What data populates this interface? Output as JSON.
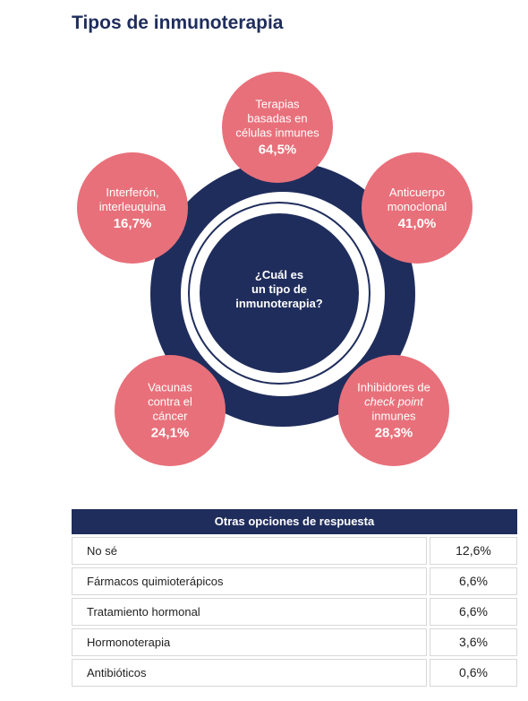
{
  "header": {
    "title": "Tipos de inmunoterapia"
  },
  "center": {
    "lines": [
      "¿Cuál es",
      "un tipo de",
      "inmunoterapia?"
    ]
  },
  "nodes": [
    {
      "lines": [
        "Terapias",
        "basadas en",
        "células inmunes"
      ],
      "value": "64,5%"
    },
    {
      "lines": [
        "Anticuerpo",
        "monoclonal"
      ],
      "value": "41,0%"
    },
    {
      "lines": [
        "Inhibidores de",
        "check point",
        "inmunes"
      ],
      "value": "28,3%"
    },
    {
      "lines": [
        "Vacunas",
        "contra el",
        "cáncer"
      ],
      "value": "24,1%"
    },
    {
      "lines": [
        "Interferón,",
        "interleuquina"
      ],
      "value": "16,7%"
    }
  ],
  "table": {
    "title": "Otras opciones de respuesta",
    "rows": [
      [
        "No sé",
        "12,6%"
      ],
      [
        "Fármacos quimioterápicos",
        "6,6%"
      ],
      [
        "Tratamiento hormonal",
        "6,6%"
      ],
      [
        "Hormonoterapia",
        "3,6%"
      ],
      [
        "Antibióticos",
        "0,6%"
      ]
    ]
  }
}
